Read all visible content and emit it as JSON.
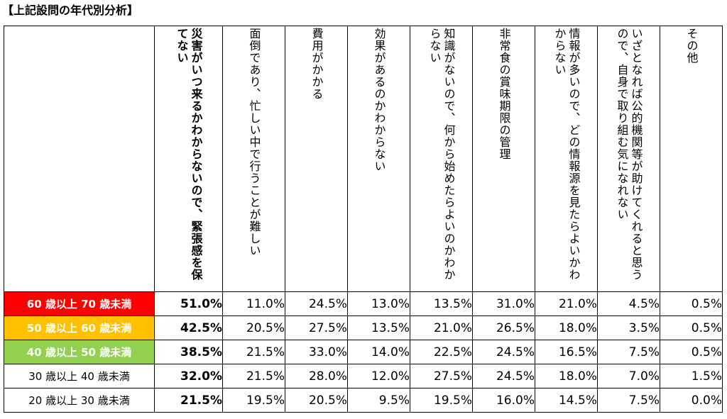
{
  "title": "【上記設問の年代別分析】",
  "columns": [
    "災害がいつ来るかわからないので、緊張感を保てない",
    "面倒であり、忙しい中で行うことが難しい",
    "費用がかかる",
    "効果があるのかわからない",
    "知識がないので、何から始めたらよいのかわからない",
    "非常食の賞味期限の管理",
    "情報が多いので、どの情報源を見たらよいかわからない",
    "いざとなれば公的機関等が助けてくれると思うので、自身で取り組む気になれない",
    "その他"
  ],
  "rows": [
    {
      "label": "60 歳以上 70 歳未満",
      "highlight": "#ff0000",
      "values": [
        "51.0%",
        "11.0%",
        "24.5%",
        "13.0%",
        "13.5%",
        "31.0%",
        "21.0%",
        "4.5%",
        "0.5%"
      ]
    },
    {
      "label": "50 歳以上 60 歳未満",
      "highlight": "#ffc000",
      "values": [
        "42.5%",
        "20.5%",
        "27.5%",
        "13.5%",
        "21.0%",
        "26.5%",
        "18.0%",
        "3.5%",
        "0.5%"
      ]
    },
    {
      "label": "40 歳以上 50 歳未満",
      "highlight": "#92d050",
      "values": [
        "38.5%",
        "21.5%",
        "33.0%",
        "14.0%",
        "22.5%",
        "24.5%",
        "16.5%",
        "7.5%",
        "0.5%"
      ]
    },
    {
      "label": "30 歳以上 40 歳未満",
      "highlight": "",
      "values": [
        "32.0%",
        "21.5%",
        "28.0%",
        "12.0%",
        "27.5%",
        "24.5%",
        "18.0%",
        "7.0%",
        "1.5%"
      ]
    },
    {
      "label": "20 歳以上 30 歳未満",
      "highlight": "",
      "values": [
        "21.5%",
        "19.5%",
        "20.5%",
        "9.5%",
        "19.5%",
        "16.0%",
        "14.5%",
        "7.5%",
        "0.0%"
      ]
    }
  ]
}
